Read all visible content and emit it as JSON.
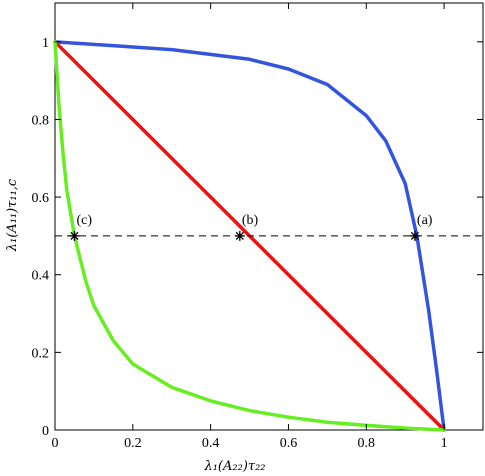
{
  "chart_data": {
    "type": "line",
    "title": "",
    "xlabel": "λ₁(A₂₂)τ₂₂",
    "ylabel": "λ₁(A₁₁)τ₁₁,c",
    "xlim": [
      0,
      1.1
    ],
    "ylim": [
      0,
      1.1
    ],
    "xticks": [
      0,
      0.2,
      0.4,
      0.6,
      0.8,
      1
    ],
    "yticks": [
      0,
      0.2,
      0.4,
      0.6,
      0.8,
      1
    ],
    "xtick_labels": [
      "0",
      "0.2",
      "0.4",
      "0.6",
      "0.8",
      "1"
    ],
    "ytick_labels": [
      "0",
      "0.2",
      "0.4",
      "0.6",
      "0.8",
      "1"
    ],
    "grid": false,
    "series": [
      {
        "color": "#3355dd",
        "x": [
          0,
          0.3,
          0.5,
          0.6,
          0.7,
          0.8,
          0.85,
          0.9,
          0.93,
          0.96,
          0.98,
          0.99,
          1.0
        ],
        "y": [
          1,
          0.98,
          0.955,
          0.93,
          0.89,
          0.81,
          0.745,
          0.635,
          0.5,
          0.31,
          0.16,
          0.08,
          0
        ]
      },
      {
        "color": "#ee1111",
        "x": [
          0,
          1
        ],
        "y": [
          1,
          0
        ]
      },
      {
        "color": "#66ee22",
        "x": [
          0,
          0.01,
          0.02,
          0.03,
          0.05,
          0.08,
          0.1,
          0.15,
          0.2,
          0.3,
          0.4,
          0.5,
          0.6,
          0.7,
          0.8,
          0.9,
          1.0
        ],
        "y": [
          1,
          0.84,
          0.72,
          0.62,
          0.5,
          0.38,
          0.32,
          0.23,
          0.17,
          0.11,
          0.075,
          0.05,
          0.033,
          0.02,
          0.012,
          0.005,
          0
        ]
      },
      {
        "color": "#000000",
        "dash": "dashed",
        "x": [
          0,
          1.1
        ],
        "y": [
          0.5,
          0.5
        ]
      }
    ],
    "markers": [
      {
        "label": "(a)",
        "x": 0.925,
        "y": 0.5
      },
      {
        "label": "(b)",
        "x": 0.475,
        "y": 0.5
      },
      {
        "label": "(c)",
        "x": 0.05,
        "y": 0.5
      }
    ]
  }
}
